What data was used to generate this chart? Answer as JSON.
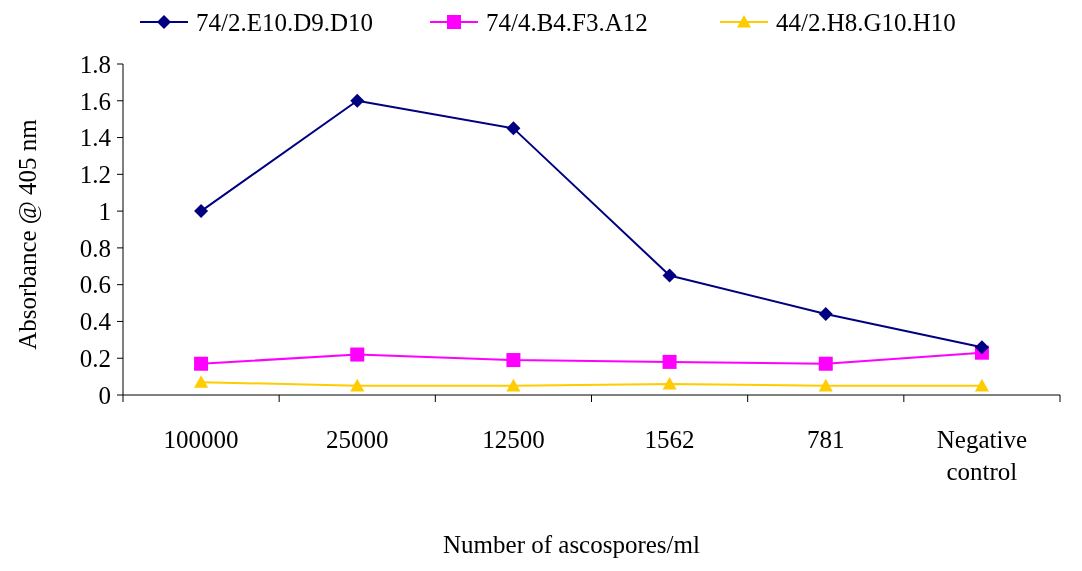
{
  "chart_data": {
    "type": "line",
    "xlabel": "Number of ascospores/ml",
    "ylabel": "Absorbance @ 405 nm",
    "categories": [
      "100000",
      "25000",
      "12500",
      "1562",
      "781",
      "Negative control"
    ],
    "series": [
      {
        "name": "74/2.E10.D9.D10",
        "color": "#000080",
        "marker": "diamond",
        "values": [
          1.0,
          1.6,
          1.45,
          0.65,
          0.44,
          0.26
        ]
      },
      {
        "name": "74/4.B4.F3.A12",
        "color": "#ff00ff",
        "marker": "square",
        "values": [
          0.17,
          0.22,
          0.19,
          0.18,
          0.17,
          0.23
        ]
      },
      {
        "name": "44/2.H8.G10.H10",
        "color": "#ffcc00",
        "marker": "triangle",
        "values": [
          0.07,
          0.05,
          0.05,
          0.06,
          0.05,
          0.05
        ]
      }
    ],
    "ylim": [
      0,
      1.8
    ],
    "yticks": [
      0,
      0.2,
      0.4,
      0.6,
      0.8,
      1,
      1.2,
      1.4,
      1.6,
      1.8
    ],
    "grid": false,
    "legend": "top"
  }
}
